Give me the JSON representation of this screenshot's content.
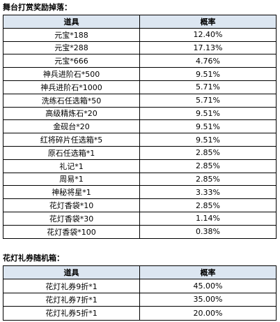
{
  "sections": [
    {
      "title": "舞台打赏奖励掉落：",
      "table": {
        "header": [
          "道具",
          "概率"
        ],
        "rows": [
          [
            "元宝*188",
            "12.40%"
          ],
          [
            "元宝*288",
            "17.13%"
          ],
          [
            "元宝*666",
            "4.76%"
          ],
          [
            "神兵进阶石*500",
            "9.51%"
          ],
          [
            "神兵进阶石*1000",
            "5.71%"
          ],
          [
            "洗练石任选箱*50",
            "5.71%"
          ],
          [
            "高级精炼石*20",
            "9.51%"
          ],
          [
            "金砚台*20",
            "9.51%"
          ],
          [
            "红将碎片任选箱*5",
            "9.51%"
          ],
          [
            "原石任选箱*1",
            "2.85%"
          ],
          [
            "礼记*1",
            "2.85%"
          ],
          [
            "周易*1",
            "2.85%"
          ],
          [
            "神秘将星*1",
            "3.33%"
          ],
          [
            "花灯香袋*10",
            "2.85%"
          ],
          [
            "花灯香袋*30",
            "1.14%"
          ],
          [
            "花灯香袋*100",
            "0.38%"
          ]
        ]
      }
    },
    {
      "title": "花灯礼券随机箱：",
      "table": {
        "header": [
          "道具",
          "概率"
        ],
        "rows": [
          [
            "花灯礼券9折*1",
            "45.00%"
          ],
          [
            "花灯礼券7折*1",
            "35.00%"
          ],
          [
            "花灯礼券5折*1",
            "20.00%"
          ]
        ]
      }
    }
  ]
}
